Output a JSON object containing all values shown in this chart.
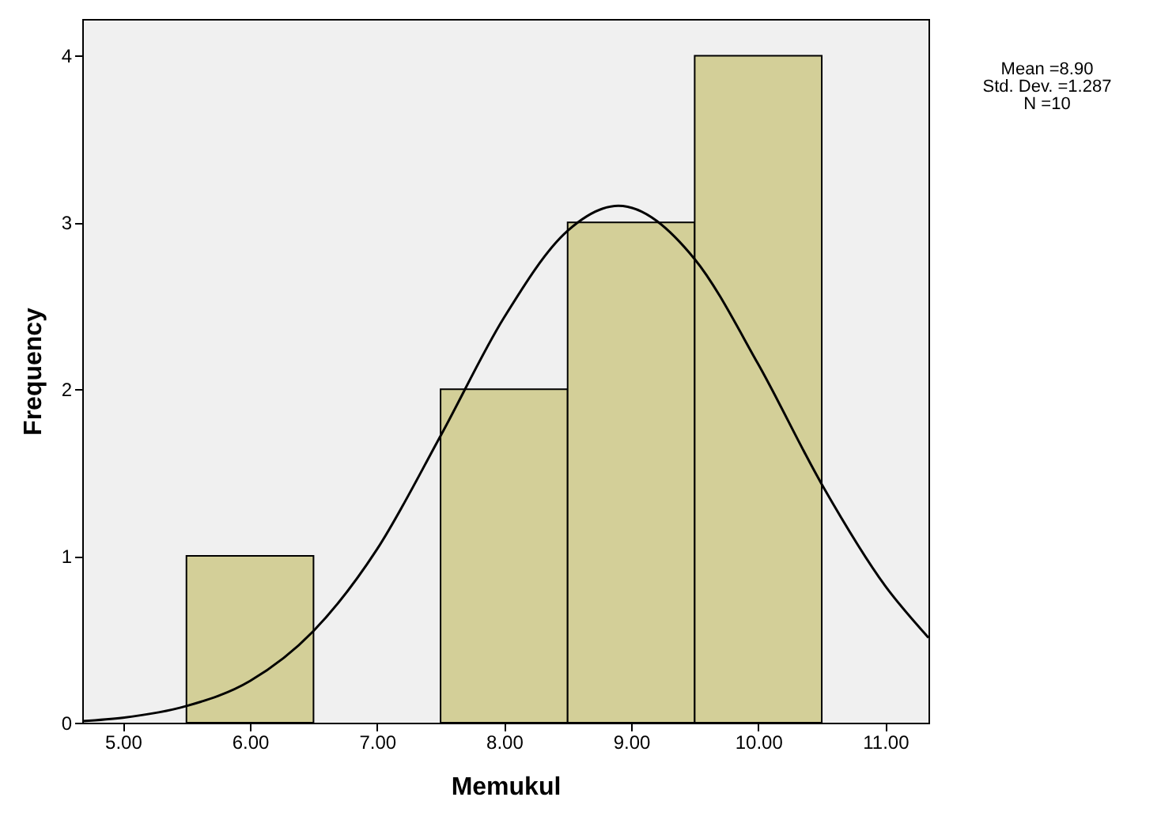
{
  "chart_data": {
    "type": "histogram",
    "xlabel": "Memukul",
    "ylabel": "Frequency",
    "bins": [
      5.5,
      6.5,
      7.5,
      8.5,
      9.5,
      10.5
    ],
    "values": [
      1,
      0,
      2,
      3,
      4
    ],
    "color": "#d3cf98",
    "series": [
      {
        "type": "line",
        "color": "#000000",
        "x": [
          4.68,
          5.0,
          5.5,
          6.0,
          6.5,
          7.0,
          7.5,
          8.0,
          8.5,
          8.9,
          9.5,
          10.0,
          10.5,
          11.0,
          11.34
        ],
        "values": [
          0.01,
          0.03,
          0.1,
          0.25,
          0.55,
          1.04,
          1.72,
          2.43,
          2.95,
          3.1,
          2.78,
          2.15,
          1.43,
          0.82,
          0.51
        ]
      }
    ],
    "xlim": [
      4.68,
      11.34
    ],
    "xticks": [
      {
        "value": 5,
        "label": "5.00"
      },
      {
        "value": 6,
        "label": "6.00"
      },
      {
        "value": 7,
        "label": "7.00"
      },
      {
        "value": 8,
        "label": "8.00"
      },
      {
        "value": 9,
        "label": "9.00"
      },
      {
        "value": 10,
        "label": "10.00"
      },
      {
        "value": 11,
        "label": "11.00"
      }
    ],
    "ylim": [
      0,
      4.22
    ],
    "yticks": [
      0,
      1,
      2,
      3,
      4
    ],
    "grid": false,
    "annotations": [
      "Mean =8.90",
      "Std. Dev. =1.287",
      "N =10"
    ]
  }
}
